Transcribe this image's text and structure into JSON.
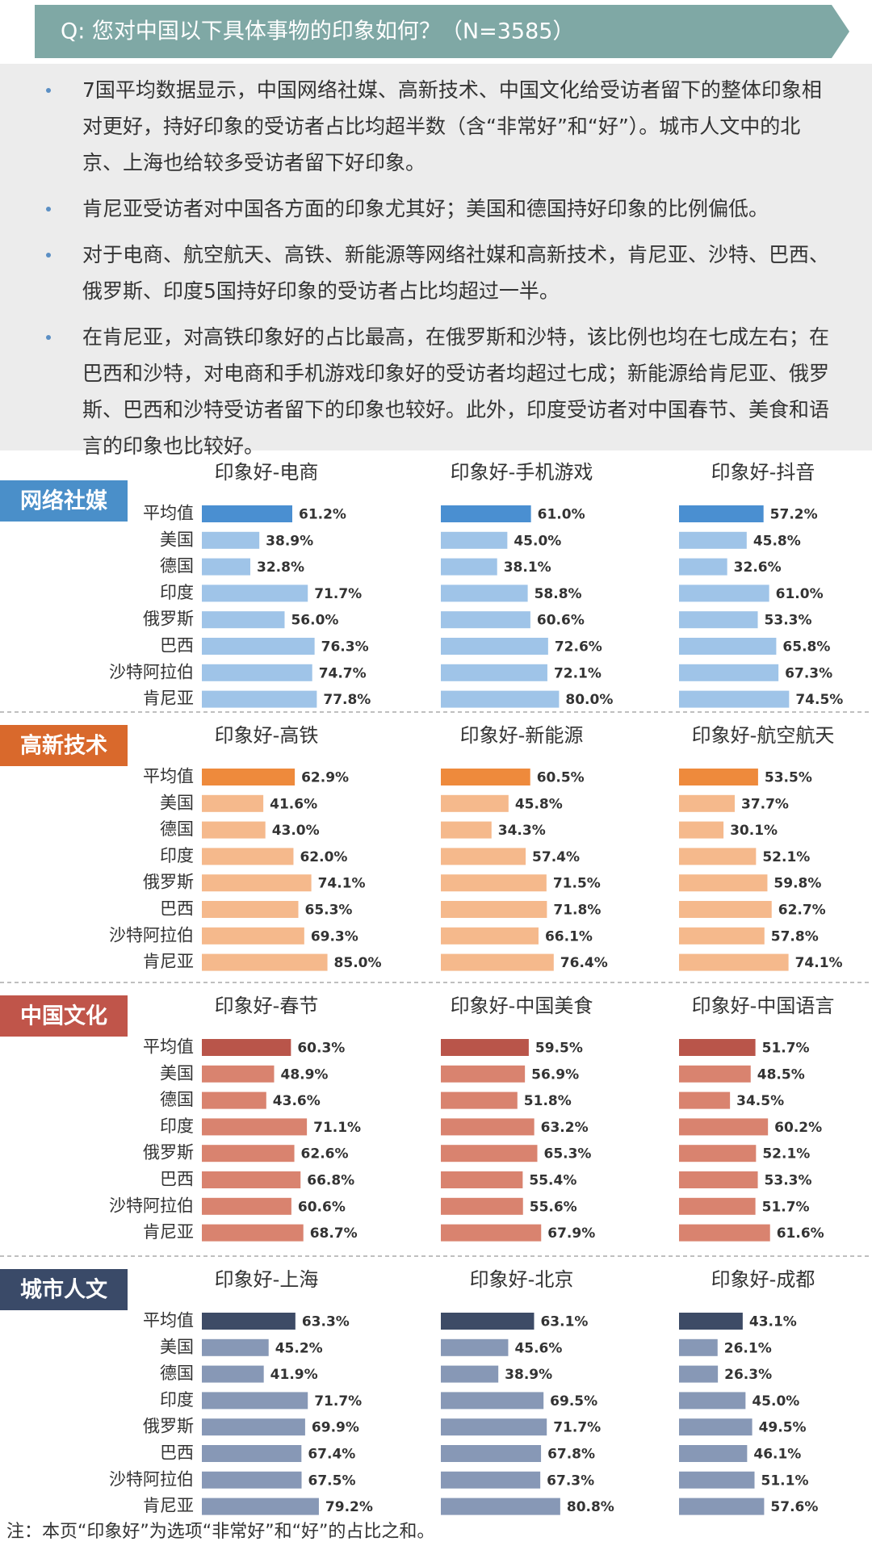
{
  "header": {
    "title": "Q: 您对中国以下具体事物的印象如何？（N=3585）"
  },
  "bullets": [
    "7国平均数据显示，中国网络社媒、高新技术、中国文化给受访者留下的整体印象相对更好，持好印象的受访者占比均超半数（含“非常好”和“好”）。城市人文中的北京、上海也给较多受访者留下好印象。",
    "肯尼亚受访者对中国各方面的印象尤其好；美国和德国持好印象的比例偏低。",
    "对于电商、航空航天、高铁、新能源等网络社媒和高新技术，肯尼亚、沙特、巴西、俄罗斯、印度5国持好印象的受访者占比均超过一半。",
    "在肯尼亚，对高铁印象好的占比最高，在俄罗斯和沙特，该比例也均在七成左右；在巴西和沙特，对电商和手机游戏印象好的受访者均超过七成；新能源给肯尼亚、俄罗斯、巴西和沙特受访者留下的印象也较好。此外，印度受访者对中国春节、美食和语言的印象也比较好。"
  ],
  "chart_data": [
    {
      "type": "bar",
      "label": "网络社媒",
      "label_color": "#4a8fc9",
      "highlight_color": "#4a8fd1",
      "color": "#9fc4e8",
      "categories": [
        "平均值",
        "美国",
        "德国",
        "印度",
        "俄罗斯",
        "巴西",
        "沙特阿拉伯",
        "肯尼亚"
      ],
      "panels": [
        {
          "title": "印象好-电商",
          "values": [
            61.2,
            38.9,
            32.8,
            71.7,
            56.0,
            76.3,
            74.7,
            77.8
          ],
          "value_labels": [
            "61.2%",
            "38.9%",
            "32.8%",
            "71.7%",
            "56.0%",
            "76.3%",
            "74.7%",
            "77.8%"
          ]
        },
        {
          "title": "印象好-手机游戏",
          "values": [
            61.0,
            45.0,
            38.1,
            58.8,
            60.6,
            72.6,
            72.1,
            80.0
          ],
          "value_labels": [
            "61.0%",
            "45.0%",
            "38.1%",
            "58.8%",
            "60.6%",
            "72.6%",
            "72.1%",
            "80.0%"
          ]
        },
        {
          "title": "印象好-抖音",
          "values": [
            57.2,
            45.8,
            32.6,
            61.0,
            53.3,
            65.8,
            67.3,
            74.5
          ],
          "value_labels": [
            "57.2%",
            "45.8%",
            "32.6%",
            "61.0%",
            "53.3%",
            "65.8%",
            "67.3%",
            "74.5%"
          ]
        }
      ]
    },
    {
      "type": "bar",
      "label": "高新技术",
      "label_color": "#d9692c",
      "highlight_color": "#ee8a3c",
      "color": "#f5b98c",
      "categories": [
        "平均值",
        "美国",
        "德国",
        "印度",
        "俄罗斯",
        "巴西",
        "沙特阿拉伯",
        "肯尼亚"
      ],
      "panels": [
        {
          "title": "印象好-高铁",
          "values": [
            62.9,
            41.6,
            43.0,
            62.0,
            74.1,
            65.3,
            69.3,
            85.0
          ],
          "value_labels": [
            "62.9%",
            "41.6%",
            "43.0%",
            "62.0%",
            "74.1%",
            "65.3%",
            "69.3%",
            "85.0%"
          ]
        },
        {
          "title": "印象好-新能源",
          "values": [
            60.5,
            45.8,
            34.3,
            57.4,
            71.5,
            71.8,
            66.1,
            76.4
          ],
          "value_labels": [
            "60.5%",
            "45.8%",
            "34.3%",
            "57.4%",
            "71.5%",
            "71.8%",
            "66.1%",
            "76.4%"
          ]
        },
        {
          "title": "印象好-航空航天",
          "values": [
            53.5,
            37.7,
            30.1,
            52.1,
            59.8,
            62.7,
            57.8,
            74.1
          ],
          "value_labels": [
            "53.5%",
            "37.7%",
            "30.1%",
            "52.1%",
            "59.8%",
            "62.7%",
            "57.8%",
            "74.1%"
          ]
        }
      ]
    },
    {
      "type": "bar",
      "label": "中国文化",
      "label_color": "#c0554a",
      "highlight_color": "#b9554a",
      "color": "#d9836f",
      "categories": [
        "平均值",
        "美国",
        "德国",
        "印度",
        "俄罗斯",
        "巴西",
        "沙特阿拉伯",
        "肯尼亚"
      ],
      "panels": [
        {
          "title": "印象好-春节",
          "values": [
            60.3,
            48.9,
            43.6,
            71.1,
            62.6,
            66.8,
            60.6,
            68.7
          ],
          "value_labels": [
            "60.3%",
            "48.9%",
            "43.6%",
            "71.1%",
            "62.6%",
            "66.8%",
            "60.6%",
            "68.7%"
          ]
        },
        {
          "title": "印象好-中国美食",
          "values": [
            59.5,
            56.9,
            51.8,
            63.2,
            65.3,
            55.4,
            55.6,
            67.9
          ],
          "value_labels": [
            "59.5%",
            "56.9%",
            "51.8%",
            "63.2%",
            "65.3%",
            "55.4%",
            "55.6%",
            "67.9%"
          ]
        },
        {
          "title": "印象好-中国语言",
          "values": [
            51.7,
            48.5,
            34.5,
            60.2,
            52.1,
            53.3,
            51.7,
            61.6
          ],
          "value_labels": [
            "51.7%",
            "48.5%",
            "34.5%",
            "60.2%",
            "52.1%",
            "53.3%",
            "51.7%",
            "61.6%"
          ]
        }
      ]
    },
    {
      "type": "bar",
      "label": "城市人文",
      "label_color": "#3a4a68",
      "highlight_color": "#3d4b66",
      "color": "#8798b6",
      "categories": [
        "平均值",
        "美国",
        "德国",
        "印度",
        "俄罗斯",
        "巴西",
        "沙特阿拉伯",
        "肯尼亚"
      ],
      "panels": [
        {
          "title": "印象好-上海",
          "values": [
            63.3,
            45.2,
            41.9,
            71.7,
            69.9,
            67.4,
            67.5,
            79.2
          ],
          "value_labels": [
            "63.3%",
            "45.2%",
            "41.9%",
            "71.7%",
            "69.9%",
            "67.4%",
            "67.5%",
            "79.2%"
          ]
        },
        {
          "title": "印象好-北京",
          "values": [
            63.1,
            45.6,
            38.9,
            69.5,
            71.7,
            67.8,
            67.3,
            80.8
          ],
          "value_labels": [
            "63.1%",
            "45.6%",
            "38.9%",
            "69.5%",
            "71.7%",
            "67.8%",
            "67.3%",
            "80.8%"
          ]
        },
        {
          "title": "印象好-成都",
          "values": [
            43.1,
            26.1,
            26.3,
            45.0,
            49.5,
            46.1,
            51.1,
            57.6
          ],
          "value_labels": [
            "43.1%",
            "26.1%",
            "26.3%",
            "45.0%",
            "49.5%",
            "46.1%",
            "51.1%",
            "57.6%"
          ]
        }
      ]
    }
  ],
  "footnote": "注：本页“印象好”为选项“非常好”和“好”的占比之和。"
}
